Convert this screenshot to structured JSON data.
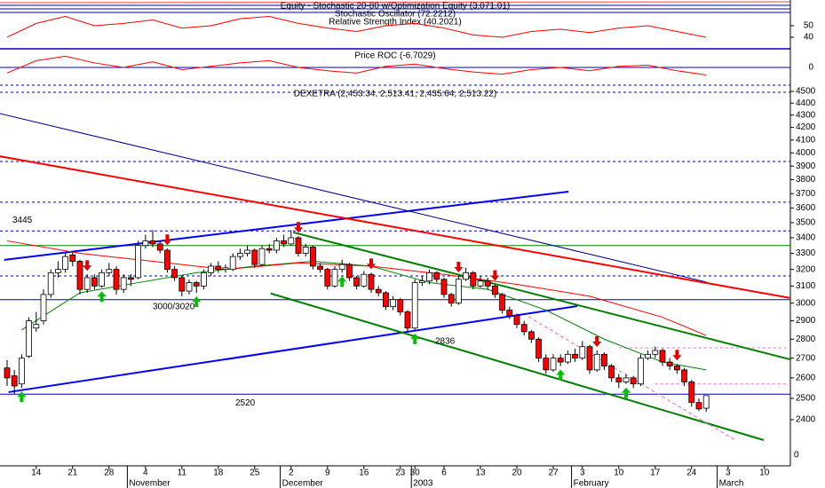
{
  "chart_data": {
    "type": "candlestick",
    "title": "DEXETRA (2,453.34, 2,513.41, 2,435.64, 2,513.22)",
    "log_y": true,
    "ylim": [
      2197,
      4546
    ],
    "yticks": [
      2400,
      2500,
      2600,
      2700,
      2800,
      2900,
      3000,
      3100,
      3200,
      3300,
      3400,
      3500,
      3600,
      3700,
      3800,
      3900,
      4000,
      4100,
      4200,
      4300,
      4400,
      4500
    ],
    "stray_label": "0",
    "up_color": "#ffffff",
    "down_color": "#ff0000",
    "categories": [
      null,
      null,
      null,
      null,
      "14",
      null,
      null,
      null,
      null,
      "21",
      null,
      null,
      null,
      null,
      "28",
      null,
      null,
      null,
      null,
      "4",
      null,
      null,
      null,
      null,
      "11",
      null,
      null,
      null,
      null,
      "18",
      null,
      null,
      null,
      null,
      "25",
      null,
      null,
      null,
      null,
      "2",
      null,
      null,
      null,
      null,
      "9",
      null,
      null,
      null,
      null,
      "16",
      null,
      null,
      null,
      null,
      "23",
      null,
      "30",
      null,
      null,
      null,
      "6",
      null,
      null,
      null,
      null,
      "13",
      null,
      null,
      null,
      null,
      "20",
      null,
      null,
      null,
      null,
      "27",
      null,
      null,
      null,
      "3",
      null,
      null,
      null,
      null,
      "10",
      null,
      null,
      null,
      null,
      "17",
      null,
      null,
      null,
      null,
      "24",
      null,
      null,
      null,
      null,
      "3",
      null,
      null,
      null,
      null,
      "10"
    ],
    "months": [
      null,
      null,
      null,
      null,
      null,
      null,
      null,
      null,
      null,
      null,
      null,
      null,
      null,
      null,
      null,
      null,
      null,
      "November",
      null,
      null,
      null,
      null,
      null,
      null,
      null,
      null,
      null,
      null,
      null,
      null,
      null,
      null,
      null,
      null,
      null,
      null,
      null,
      null,
      "December",
      null,
      null,
      null,
      null,
      null,
      null,
      null,
      null,
      null,
      null,
      null,
      null,
      null,
      null,
      null,
      null,
      null,
      "2003",
      null,
      null,
      null,
      null,
      null,
      null,
      null,
      null,
      null,
      null,
      null,
      null,
      null,
      null,
      null,
      null,
      null,
      null,
      null,
      null,
      null,
      "February",
      null,
      null,
      null,
      null,
      null,
      null,
      null,
      null,
      null,
      null,
      null,
      null,
      null,
      null,
      null,
      null,
      null,
      null,
      null,
      "March",
      null,
      null,
      null,
      null,
      null,
      null
    ],
    "ohlc": [
      [
        2650,
        2690,
        2560,
        2600
      ],
      [
        2610,
        2640,
        2520,
        2560
      ],
      [
        2570,
        2720,
        2550,
        2700
      ],
      [
        2710,
        2920,
        2700,
        2900
      ],
      [
        2860,
        2950,
        2840,
        2880
      ],
      [
        2900,
        3080,
        2880,
        3050
      ],
      [
        3050,
        3200,
        3030,
        3180
      ],
      [
        3180,
        3250,
        3150,
        3200
      ],
      [
        3200,
        3300,
        3180,
        3280
      ],
      [
        3290,
        3310,
        3220,
        3250
      ],
      [
        3250,
        3260,
        3050,
        3080
      ],
      [
        3080,
        3170,
        3060,
        3150
      ],
      [
        3150,
        3170,
        3080,
        3100
      ],
      [
        3100,
        3200,
        3090,
        3180
      ],
      [
        3180,
        3240,
        3160,
        3200
      ],
      [
        3200,
        3220,
        3050,
        3080
      ],
      [
        3080,
        3170,
        3060,
        3150
      ],
      [
        3150,
        3170,
        3100,
        3140
      ],
      [
        3150,
        3380,
        3140,
        3350
      ],
      [
        3350,
        3420,
        3330,
        3380
      ],
      [
        3380,
        3450,
        3340,
        3360
      ],
      [
        3360,
        3380,
        3300,
        3320
      ],
      [
        3320,
        3330,
        3180,
        3200
      ],
      [
        3200,
        3220,
        3130,
        3150
      ],
      [
        3150,
        3160,
        3040,
        3070
      ],
      [
        3070,
        3140,
        3050,
        3120
      ],
      [
        3120,
        3130,
        3060,
        3100
      ],
      [
        3100,
        3200,
        3080,
        3180
      ],
      [
        3180,
        3240,
        3160,
        3220
      ],
      [
        3220,
        3250,
        3180,
        3200
      ],
      [
        3200,
        3230,
        3180,
        3210
      ],
      [
        3200,
        3300,
        3190,
        3280
      ],
      [
        3280,
        3330,
        3260,
        3300
      ],
      [
        3300,
        3350,
        3280,
        3320
      ],
      [
        3320,
        3330,
        3210,
        3230
      ],
      [
        3230,
        3350,
        3220,
        3330
      ],
      [
        3330,
        3360,
        3300,
        3320
      ],
      [
        3320,
        3400,
        3300,
        3380
      ],
      [
        3380,
        3420,
        3340,
        3360
      ],
      [
        3360,
        3450,
        3350,
        3400
      ],
      [
        3400,
        3410,
        3280,
        3300
      ],
      [
        3300,
        3360,
        3280,
        3340
      ],
      [
        3340,
        3350,
        3200,
        3220
      ],
      [
        3220,
        3240,
        3180,
        3200
      ],
      [
        3200,
        3210,
        3080,
        3100
      ],
      [
        3100,
        3220,
        3090,
        3200
      ],
      [
        3200,
        3260,
        3180,
        3230
      ],
      [
        3230,
        3240,
        3130,
        3150
      ],
      [
        3150,
        3160,
        3080,
        3100
      ],
      [
        3100,
        3190,
        3090,
        3170
      ],
      [
        3170,
        3180,
        3060,
        3080
      ],
      [
        3080,
        3100,
        3040,
        3060
      ],
      [
        3060,
        3070,
        2960,
        2980
      ],
      [
        2980,
        3040,
        2960,
        3020
      ],
      [
        3020,
        3030,
        2930,
        2950
      ],
      [
        2950,
        2960,
        2836,
        2860
      ],
      [
        2860,
        3140,
        2850,
        3120
      ],
      [
        3120,
        3160,
        3100,
        3130
      ],
      [
        3130,
        3200,
        3110,
        3180
      ],
      [
        3180,
        3190,
        3120,
        3140
      ],
      [
        3140,
        3150,
        3030,
        3050
      ],
      [
        3050,
        3060,
        2980,
        3000
      ],
      [
        3000,
        3160,
        2990,
        3140
      ],
      [
        3140,
        3210,
        3130,
        3180
      ],
      [
        3180,
        3190,
        3080,
        3100
      ],
      [
        3100,
        3160,
        3090,
        3130
      ],
      [
        3130,
        3150,
        3080,
        3100
      ],
      [
        3100,
        3110,
        3030,
        3050
      ],
      [
        3050,
        3060,
        2940,
        2960
      ],
      [
        2960,
        2980,
        2910,
        2930
      ],
      [
        2930,
        2940,
        2860,
        2880
      ],
      [
        2880,
        2900,
        2820,
        2840
      ],
      [
        2840,
        2850,
        2780,
        2800
      ],
      [
        2800,
        2810,
        2680,
        2700
      ],
      [
        2700,
        2720,
        2620,
        2640
      ],
      [
        2640,
        2720,
        2630,
        2700
      ],
      [
        2700,
        2720,
        2660,
        2680
      ],
      [
        2680,
        2740,
        2670,
        2720
      ],
      [
        2720,
        2750,
        2680,
        2700
      ],
      [
        2700,
        2790,
        2690,
        2760
      ],
      [
        2760,
        2770,
        2620,
        2640
      ],
      [
        2640,
        2740,
        2630,
        2720
      ],
      [
        2720,
        2730,
        2640,
        2660
      ],
      [
        2660,
        2670,
        2580,
        2600
      ],
      [
        2600,
        2620,
        2550,
        2580
      ],
      [
        2580,
        2620,
        2570,
        2600
      ],
      [
        2600,
        2610,
        2550,
        2570
      ],
      [
        2570,
        2720,
        2560,
        2700
      ],
      [
        2700,
        2740,
        2690,
        2720
      ],
      [
        2720,
        2760,
        2700,
        2740
      ],
      [
        2740,
        2750,
        2660,
        2680
      ],
      [
        2680,
        2700,
        2640,
        2660
      ],
      [
        2660,
        2670,
        2620,
        2640
      ],
      [
        2640,
        2650,
        2560,
        2580
      ],
      [
        2580,
        2590,
        2460,
        2480
      ],
      [
        2480,
        2500,
        2440,
        2450
      ],
      [
        2453.34,
        2513.41,
        2435.64,
        2513.22
      ],
      null,
      null,
      null,
      null,
      null,
      null,
      null,
      null
    ],
    "moving_averages": [
      {
        "color": "#008000",
        "x": [
          2,
          10,
          18,
          26,
          34,
          42,
          50,
          58,
          66,
          74,
          82,
          90,
          96
        ],
        "values": [
          2850,
          3060,
          3120,
          3180,
          3220,
          3250,
          3220,
          3120,
          3080,
          2960,
          2800,
          2680,
          2640
        ]
      },
      {
        "color": "#ff0000",
        "x": [
          0,
          10,
          20,
          30,
          40,
          50,
          60,
          70,
          80,
          90,
          96
        ],
        "values": [
          3380,
          3300,
          3250,
          3200,
          3240,
          3220,
          3170,
          3110,
          3040,
          2920,
          2820
        ]
      }
    ],
    "trend_lines": [
      {
        "color": "#0000ff",
        "width": 2,
        "x": [
          -0.4,
          77.1
        ],
        "values": [
          3259,
          3714
        ]
      },
      {
        "color": "#0000ff",
        "width": 2,
        "x": [
          0.2,
          78.3
        ],
        "values": [
          2530,
          2983
        ]
      },
      {
        "color": "#00008b",
        "width": 1,
        "x": [
          -1,
          96
        ],
        "values": [
          4313,
          3124
        ]
      },
      {
        "color": "#ff0000",
        "width": 2,
        "x": [
          -1,
          107.6
        ],
        "values": [
          3974,
          3029
        ]
      },
      {
        "color": "#008000",
        "width": 2,
        "x": [
          39.3,
          107.6
        ],
        "values": [
          3435,
          2693
        ]
      },
      {
        "color": "#008000",
        "width": 2,
        "x": [
          36.2,
          103.9
        ],
        "values": [
          3056,
          2308
        ]
      },
      {
        "color": "#ff66cc",
        "width": 1,
        "dashed": true,
        "x": [
          71.6,
          100
        ],
        "values": [
          2923,
          2308
        ]
      }
    ],
    "levels": [
      {
        "value": 3445,
        "label": "3445",
        "color": "#0000c0",
        "dashed": true
      },
      {
        "value": 3020,
        "label": "3000/3020",
        "color": "#0000c0"
      },
      {
        "value": 2520,
        "label": "2520",
        "color": "#0000c0"
      },
      {
        "value": 3935,
        "color": "#0000c0",
        "dashed": true
      },
      {
        "value": 3640,
        "color": "#0000c0",
        "dashed": true
      },
      {
        "value": 3160,
        "color": "#0000c0",
        "dashed": true
      },
      {
        "value": 3350,
        "color": "#008000"
      },
      {
        "value": 2754,
        "color": "#ff66cc",
        "dashed": true,
        "x": [
          84,
          107.6
        ]
      },
      {
        "value": 2570,
        "color": "#ff66cc",
        "dashed": true,
        "x": [
          89,
          107.6
        ]
      }
    ],
    "low_note": {
      "label": "2836",
      "value": 2836
    },
    "buy_signals": [
      2,
      13,
      26,
      46,
      56,
      76,
      85
    ],
    "sell_signals": [
      11,
      22,
      40,
      50,
      62,
      67,
      81,
      92
    ],
    "equity_title": "Equity - Stochastic 20-80 w/Optimization Equity (3,071.01)",
    "stoch_title": "Stochastic Oscillator (72.2212)",
    "rsi": {
      "title": "Relative Strength Index (40.2021)",
      "color": "#ff0000",
      "ylim": [
        30,
        61.5
      ],
      "yticks": [
        40,
        50
      ],
      "x": [
        0,
        4,
        8,
        12,
        16,
        20,
        24,
        28,
        32,
        36,
        40,
        44,
        48,
        52,
        56,
        60,
        64,
        68,
        72,
        76,
        80,
        84,
        88,
        92,
        96
      ],
      "values": [
        40,
        52,
        58,
        50,
        52,
        55,
        48,
        50,
        56,
        58,
        52,
        48,
        45,
        50,
        52,
        48,
        42,
        40,
        45,
        47,
        44,
        48,
        50,
        45,
        40
      ]
    },
    "roc": {
      "title": "Price ROC (-6.7029)",
      "color": "#ff0000",
      "ylim": [
        -15,
        15
      ],
      "yticks": [
        0
      ],
      "x": [
        0,
        4,
        8,
        12,
        16,
        20,
        24,
        28,
        32,
        36,
        40,
        44,
        48,
        52,
        56,
        60,
        64,
        68,
        72,
        76,
        80,
        84,
        88,
        92,
        96
      ],
      "values": [
        -5,
        6,
        10,
        4,
        0,
        5,
        -2,
        1,
        4,
        6,
        0,
        -3,
        -5,
        1,
        3,
        -1,
        -4,
        -6,
        -2,
        0,
        -3,
        1,
        2,
        -3,
        -6.7029
      ]
    }
  }
}
